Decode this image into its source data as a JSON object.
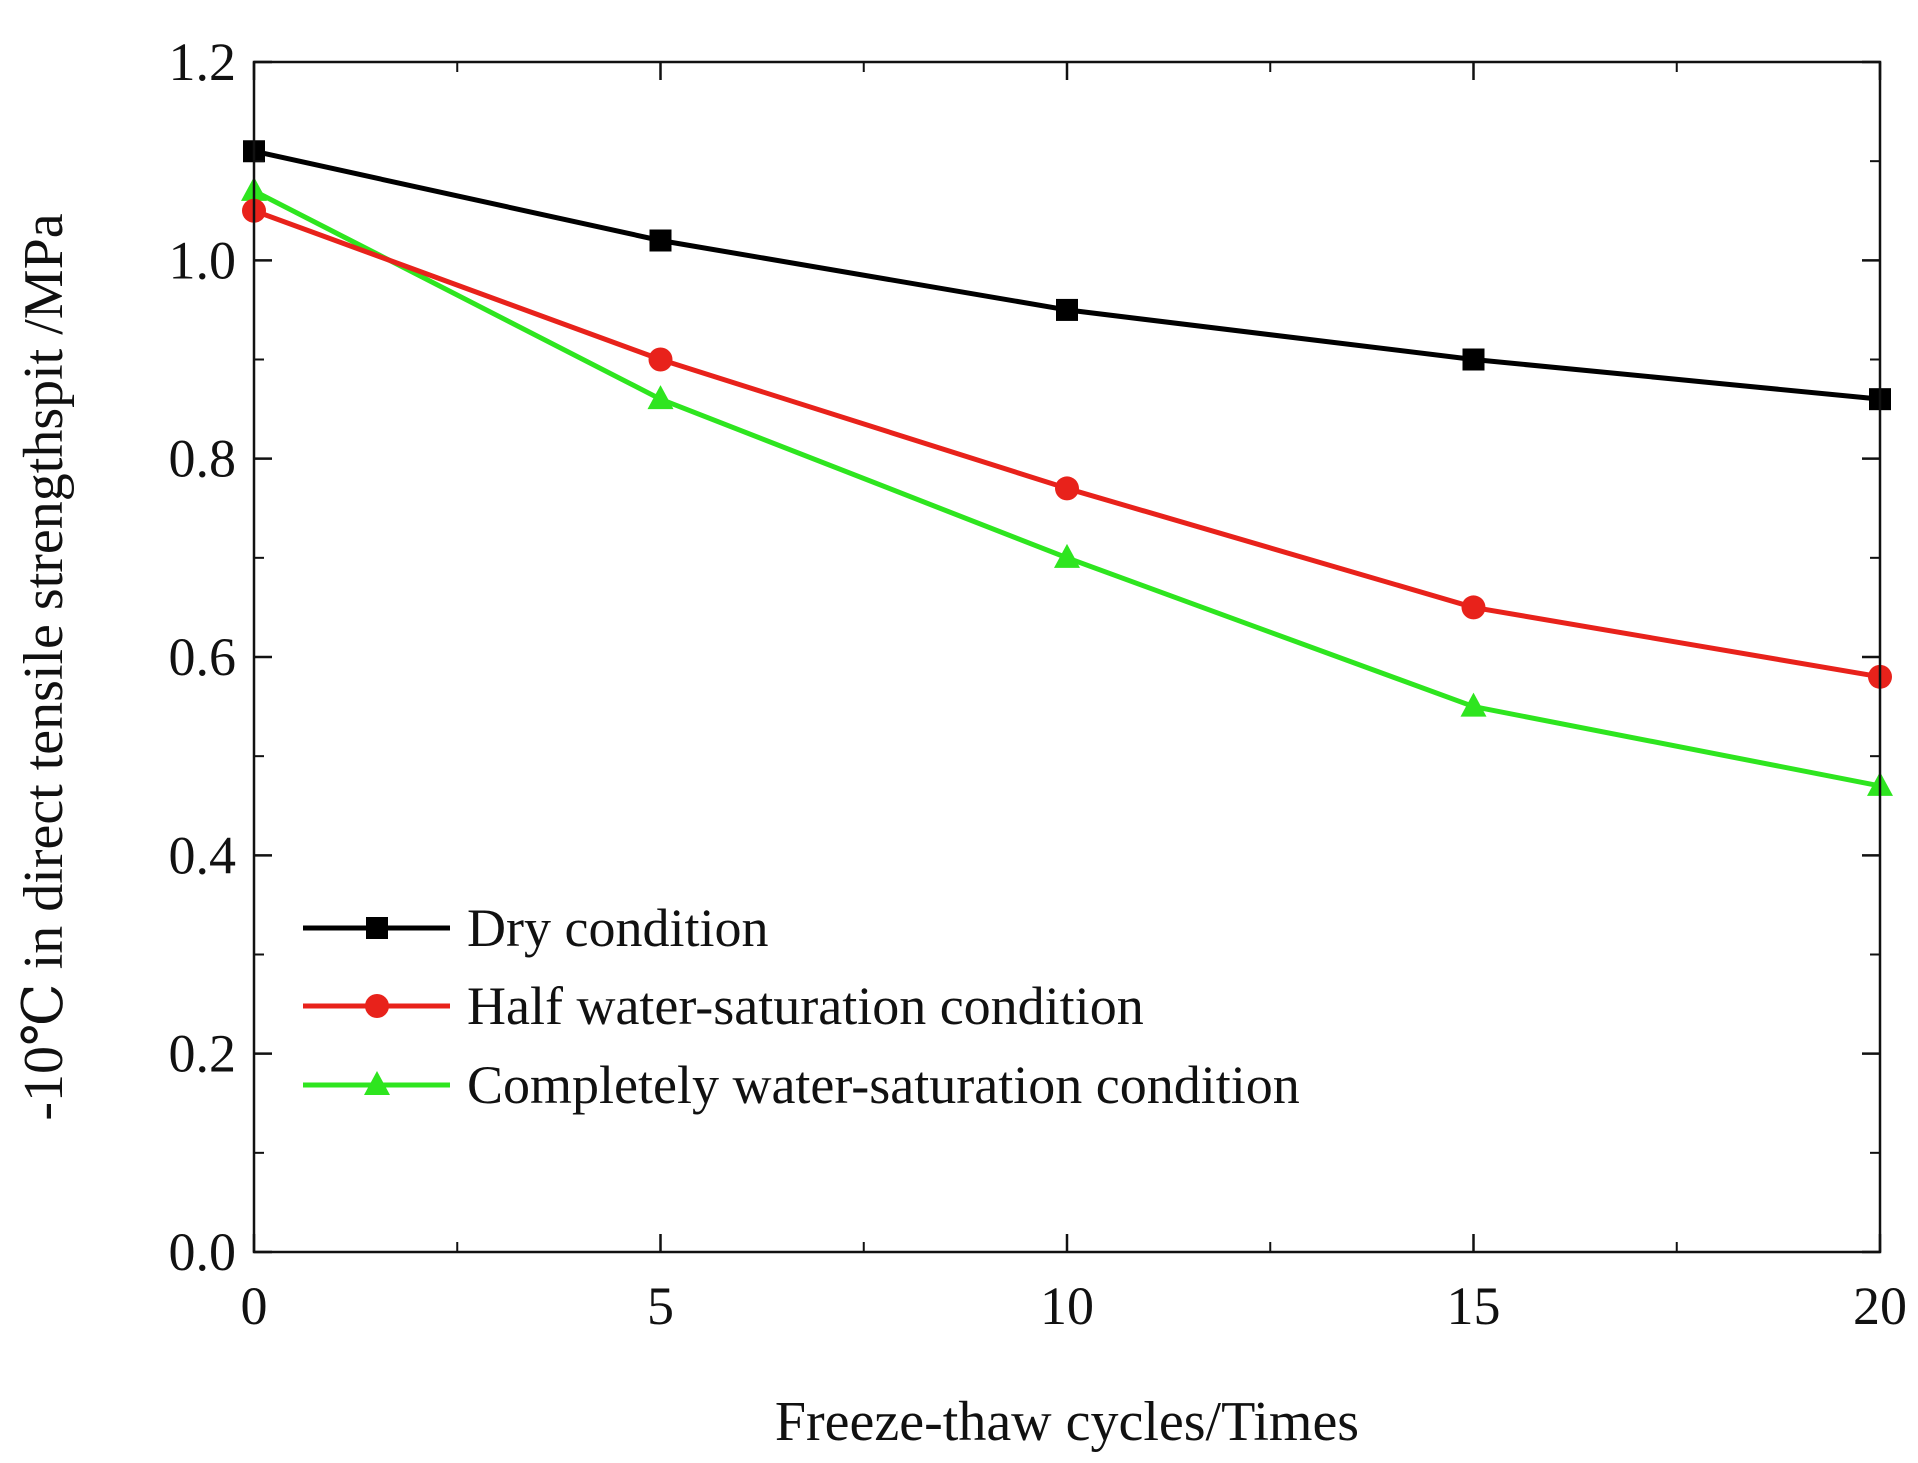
{
  "chart_data": {
    "type": "line",
    "title": "",
    "xlabel": "Freeze-thaw cycles/Times",
    "ylabel": "-10℃ in direct tensile strengthspit /MPa",
    "x": [
      0,
      5,
      10,
      15,
      20
    ],
    "xlim": [
      0,
      20
    ],
    "ylim": [
      0.0,
      1.2
    ],
    "x_ticks": [
      0,
      5,
      10,
      15,
      20
    ],
    "x_tick_labels": [
      "0",
      "5",
      "10",
      "15",
      "20"
    ],
    "y_ticks": [
      0.0,
      0.2,
      0.4,
      0.6,
      0.8,
      1.0,
      1.2
    ],
    "y_tick_labels": [
      "0.0",
      "0.2",
      "0.4",
      "0.6",
      "0.8",
      "1.0",
      "1.2"
    ],
    "grid": false,
    "legend_position": "bottom-left",
    "series": [
      {
        "name": "Dry condition",
        "color": "#000000",
        "marker": "square",
        "values": [
          1.11,
          1.02,
          0.95,
          0.9,
          0.86
        ]
      },
      {
        "name": "Half water-saturation condition",
        "color": "#e8221b",
        "marker": "circle",
        "values": [
          1.05,
          0.9,
          0.77,
          0.65,
          0.58
        ]
      },
      {
        "name": "Completely water-saturation condition",
        "color": "#2ee51f",
        "marker": "triangle",
        "values": [
          1.07,
          0.86,
          0.7,
          0.55,
          0.47
        ]
      }
    ]
  }
}
